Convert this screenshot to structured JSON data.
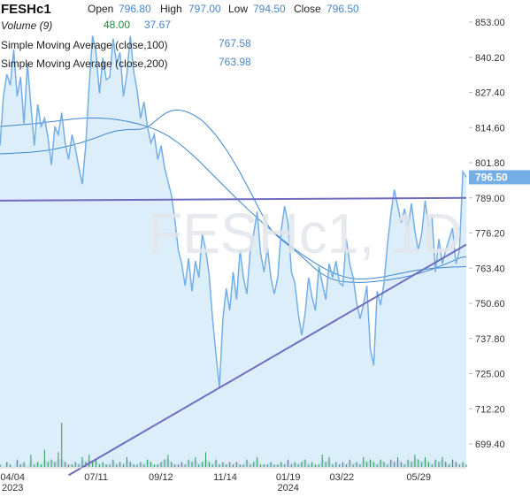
{
  "header": {
    "symbol": "FESHc1",
    "open_label": "Open",
    "open_value": "796.80",
    "high_label": "High",
    "high_value": "797.00",
    "low_label": "Low",
    "low_value": "794.50",
    "close_label": "Close",
    "close_value": "796.50",
    "volume_label": "Volume (9)",
    "volume_value_1": "48.00",
    "volume_value_2": "37.67",
    "sma100_label": "Simple Moving Average (close,100)",
    "sma100_value": "767.58",
    "sma200_label": "Simple Moving Average (close,200)",
    "sma200_value": "763.98"
  },
  "watermark": "FESHc1, 1D",
  "colors": {
    "price_line": "#74aee6",
    "price_fill": "#ddeefb",
    "sma_line": "#3f86cf",
    "trendline": "#6f6cc0",
    "price_badge": "#74aee6",
    "volume_bar": "#2f9a5a",
    "volume_area": "#c9ddf2",
    "volume_dot": "#d24141",
    "volume_value_1": "#1e8e3e"
  },
  "chart_data": {
    "type": "line",
    "title": "FESHc1",
    "y_ticks": [
      "853.00",
      "840.20",
      "827.40",
      "814.60",
      "801.80",
      "789.00",
      "776.20",
      "763.40",
      "750.60",
      "737.80",
      "725.00",
      "712.20",
      "699.40"
    ],
    "ylim": [
      695,
      856
    ],
    "x_ticks": [
      {
        "label": "04/04",
        "sub": "2023"
      },
      {
        "label": "07/11",
        "sub": ""
      },
      {
        "label": "09/12",
        "sub": ""
      },
      {
        "label": "11/14",
        "sub": ""
      },
      {
        "label": "01/19",
        "sub": "2024"
      },
      {
        "label": "03/22",
        "sub": ""
      },
      {
        "label": "05/29",
        "sub": ""
      }
    ],
    "last_price": "796.50",
    "series": [
      {
        "name": "FESHc1",
        "type": "area",
        "values": [
          808.0,
          826.0,
          834.0,
          830.0,
          843.0,
          826.0,
          833.0,
          816.0,
          838.0,
          823.0,
          808.0,
          823.0,
          815.0,
          818.0,
          811.0,
          801.0,
          815.0,
          812.0,
          820.0,
          809.0,
          803.0,
          812.0,
          807.0,
          800.0,
          794.0,
          808.0,
          830.0,
          848.0,
          842.0,
          827.0,
          840.0,
          832.0,
          833.0,
          847.0,
          838.0,
          842.0,
          826.0,
          834.0,
          848.0,
          835.0,
          828.0,
          818.0,
          824.0,
          815.0,
          809.0,
          812.0,
          803.0,
          808.0,
          800.0,
          795.0,
          790.0,
          781.0,
          770.0,
          765.0,
          757.0,
          767.0,
          755.0,
          766.0,
          760.0,
          776.0,
          770.0,
          761.0,
          745.0,
          732.0,
          720.0,
          745.0,
          756.0,
          748.0,
          762.0,
          752.0,
          770.0,
          760.0,
          754.0,
          770.0,
          776.0,
          784.0,
          769.0,
          762.0,
          771.0,
          760.0,
          754.0,
          760.0,
          777.0,
          786.0,
          780.0,
          762.0,
          758.0,
          747.0,
          739.0,
          747.0,
          760.0,
          753.0,
          748.0,
          764.0,
          758.0,
          752.0,
          765.0,
          760.0,
          766.0,
          758.0,
          757.0,
          774.0,
          765.0,
          760.0,
          751.0,
          745.0,
          750.0,
          757.0,
          734.0,
          728.0,
          755.0,
          750.0,
          758.0,
          772.0,
          783.0,
          792.0,
          786.0,
          780.0,
          785.0,
          778.0,
          787.0,
          777.0,
          770.0,
          776.0,
          788.0,
          778.0,
          782.0,
          762.0,
          774.0,
          765.0,
          770.0,
          774.0,
          778.0,
          765.0,
          770.0,
          798.5,
          796.5
        ]
      },
      {
        "name": "Simple Moving Average (close,100)",
        "type": "line",
        "values": [
          805.0,
          805.1,
          805.2,
          805.3,
          805.4,
          805.5,
          805.6,
          805.8,
          806.0,
          806.2,
          806.5,
          806.8,
          807.2,
          807.6,
          808.0,
          808.5,
          809.0,
          809.6,
          810.2,
          810.8,
          811.5,
          812.2,
          812.8,
          813.3,
          813.6,
          813.8,
          813.9,
          813.9,
          814.0,
          814.5,
          815.5,
          817.0,
          818.5,
          819.8,
          820.6,
          821.0,
          820.9,
          820.5,
          819.8,
          818.8,
          817.6,
          816.0,
          814.0,
          812.0,
          809.5,
          806.9,
          804.0,
          801.0,
          797.8,
          794.4,
          791.0,
          787.4,
          783.8,
          780.4,
          777.5,
          775.5,
          774.0,
          772.5,
          771.0,
          769.5,
          768.0,
          766.3,
          764.6,
          763.0,
          761.6,
          760.5,
          759.6,
          759.0,
          758.6,
          758.4,
          758.3,
          758.2,
          758.2,
          758.3,
          758.4,
          758.6,
          758.8,
          759.0,
          759.3,
          759.6,
          759.9,
          760.3,
          760.7,
          761.2,
          761.7,
          762.3,
          762.9,
          763.6,
          764.3,
          765.0,
          765.8,
          766.6,
          767.3,
          767.58
        ]
      },
      {
        "name": "Simple Moving Average (close,200)",
        "type": "line",
        "values": [
          815.0,
          815.2,
          815.4,
          815.6,
          815.8,
          816.0,
          816.3,
          816.6,
          816.9,
          817.2,
          817.5,
          817.8,
          818.0,
          818.1,
          818.1,
          818.0,
          817.8,
          817.5,
          817.1,
          816.6,
          816.0,
          815.3,
          814.5,
          813.5,
          812.3,
          810.8,
          809.0,
          807.0,
          804.8,
          802.5,
          800.0,
          797.5,
          795.0,
          792.5,
          790.0,
          787.6,
          785.2,
          782.9,
          780.6,
          778.4,
          776.3,
          774.2,
          772.2,
          770.3,
          768.5,
          766.8,
          765.2,
          763.7,
          762.4,
          761.3,
          760.4,
          759.8,
          759.5,
          759.5,
          759.6,
          759.9,
          760.3,
          760.8,
          761.3,
          761.8,
          762.3,
          762.7,
          763.0,
          763.3,
          763.5,
          763.7,
          763.8,
          763.9,
          763.98
        ]
      },
      {
        "name": "Volume (9)",
        "type": "bar",
        "values": [
          1,
          0,
          2,
          1,
          0,
          3,
          1,
          2,
          0,
          5,
          1,
          2,
          1,
          7,
          2,
          3,
          2,
          6,
          18,
          2,
          1,
          1,
          2,
          1,
          4,
          2,
          5,
          2,
          3,
          1,
          2,
          1,
          1,
          3,
          1,
          2,
          1,
          4,
          2,
          1,
          1,
          2,
          1,
          3,
          2,
          1,
          1,
          2,
          3,
          5,
          2,
          1,
          1,
          2,
          1,
          3,
          2,
          4,
          1,
          2,
          6,
          2,
          1,
          3,
          1,
          2,
          1,
          2,
          1,
          2,
          1,
          1,
          3,
          1,
          2,
          4,
          1,
          1,
          1,
          2,
          1,
          1,
          2,
          1,
          3,
          1,
          2,
          1,
          2,
          3,
          1,
          2,
          1,
          1,
          5,
          2,
          4,
          1,
          2,
          1,
          2,
          1,
          3,
          1,
          2,
          1,
          4,
          2,
          3,
          2,
          1,
          3,
          2,
          1,
          3,
          2,
          4,
          2,
          1,
          3,
          2,
          5,
          3,
          2,
          4,
          2,
          1,
          3,
          2,
          4,
          2,
          1,
          3,
          2,
          1,
          2,
          1
        ]
      }
    ],
    "trendlines": [
      {
        "name": "horizontal resistance",
        "points": [
          [
            0,
            788.0
          ],
          [
            136,
            789.0
          ]
        ]
      },
      {
        "name": "rising support",
        "points": [
          [
            20,
            688.0
          ],
          [
            136,
            772.0
          ]
        ]
      }
    ]
  }
}
